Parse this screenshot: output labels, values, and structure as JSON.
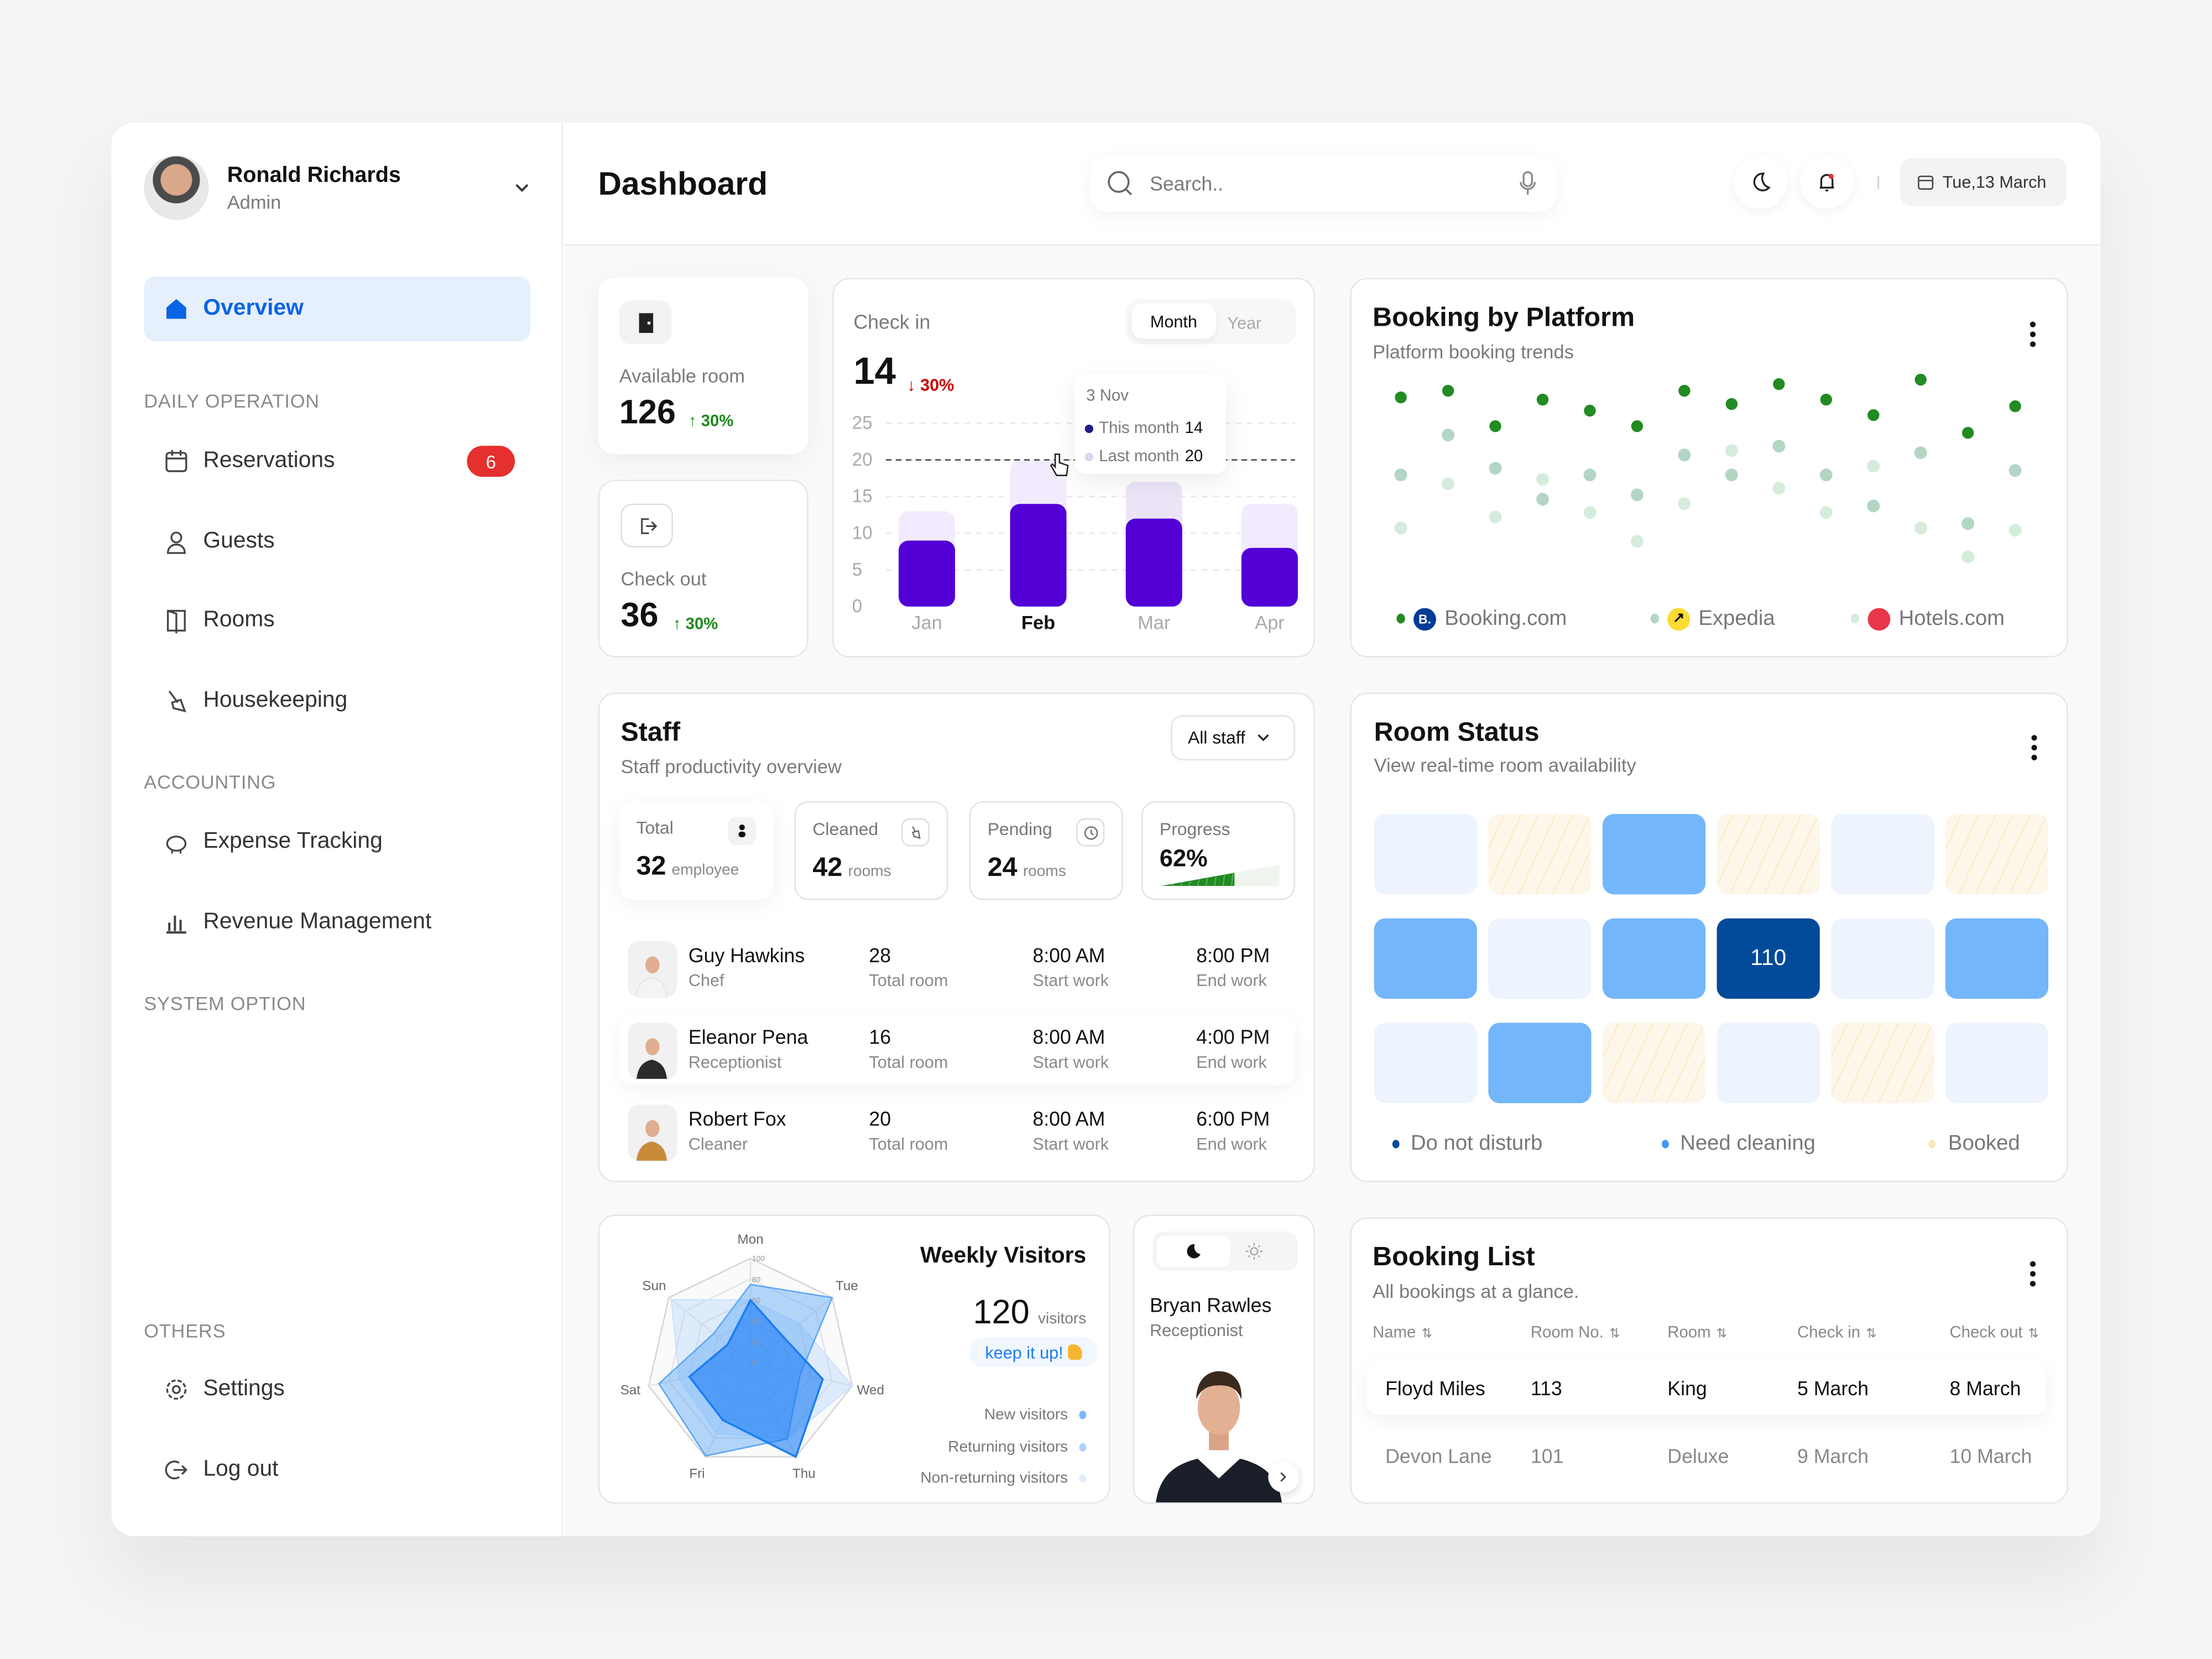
{
  "profile": {
    "name": "Ronald Richards",
    "role": "Admin"
  },
  "sidebar": {
    "overview": "Overview",
    "sections": {
      "daily": "DAILY OPERATION",
      "accounting": "ACCOUNTING",
      "system": "SYSTEM OPTION",
      "others": "OTHERS"
    },
    "items": [
      {
        "label": "Reservations",
        "icon": "calendar-icon",
        "badge": "6"
      },
      {
        "label": "Guests",
        "icon": "user-icon"
      },
      {
        "label": "Rooms",
        "icon": "door-icon"
      },
      {
        "label": "Housekeeping",
        "icon": "broom-icon"
      },
      {
        "label": "Expense Tracking",
        "icon": "piggy-bank-icon"
      },
      {
        "label": "Revenue Management",
        "icon": "bar-chart-icon"
      },
      {
        "label": "Settings",
        "icon": "gear-icon"
      },
      {
        "label": "Log out",
        "icon": "logout-icon"
      }
    ]
  },
  "header": {
    "title": "Dashboard",
    "search_placeholder": "Search..",
    "date": "Tue,13 March"
  },
  "available_room": {
    "label": "Available room",
    "value": "126",
    "change": "↑ 30%"
  },
  "check_out": {
    "label": "Check out",
    "value": "36",
    "change": "↑ 30%"
  },
  "check_in": {
    "label": "Check in",
    "value": "14",
    "change": "↓ 30%",
    "tabs": [
      "Month",
      "Year"
    ],
    "active_tab": "Month",
    "tooltip": {
      "date": "3 Nov",
      "this_label": "This month",
      "this_value": "14",
      "last_label": "Last month",
      "last_value": "20"
    }
  },
  "booking_platform": {
    "title": "Booking by Platform",
    "subtitle": "Platform booking trends"
  },
  "staff": {
    "title": "Staff",
    "subtitle": "Staff productivity overview",
    "filter": "All staff",
    "stats": [
      {
        "label": "Total",
        "value": "32",
        "unit": "employee"
      },
      {
        "label": "Cleaned",
        "value": "42",
        "unit": "rooms"
      },
      {
        "label": "Pending",
        "value": "24",
        "unit": "rooms"
      },
      {
        "label": "Progress",
        "value": "62%",
        "progress": 62
      }
    ],
    "rows": [
      {
        "name": "Guy Hawkins",
        "role": "Chef",
        "rooms": "28",
        "rooms_label": "Total room",
        "start": "8:00 AM",
        "start_label": "Start work",
        "end": "8:00 PM",
        "end_label": "End work"
      },
      {
        "name": "Eleanor Pena",
        "role": "Receptionist",
        "rooms": "16",
        "rooms_label": "Total room",
        "start": "8:00 AM",
        "start_label": "Start work",
        "end": "4:00 PM",
        "end_label": "End work"
      },
      {
        "name": "Robert Fox",
        "role": "Cleaner",
        "rooms": "20",
        "rooms_label": "Total room",
        "start": "8:00 AM",
        "start_label": "Start work",
        "end": "6:00 PM",
        "end_label": "End work"
      }
    ]
  },
  "room_status": {
    "title": "Room Status",
    "subtitle": "View real-time room availability",
    "grid": [
      [
        "free",
        "booked",
        "clean",
        "booked",
        "free",
        "booked"
      ],
      [
        "clean",
        "free",
        "clean",
        "dnd",
        "free",
        "clean"
      ],
      [
        "free",
        "clean",
        "booked",
        "free",
        "booked",
        "free"
      ]
    ],
    "highlight_room": "110",
    "legend": [
      "Do not disturb",
      "Need cleaning",
      "Booked"
    ],
    "colors": {
      "dnd": "#024a9a",
      "clean": "#74b6fb",
      "free": "#edf4fe",
      "booked": "#fdf7eb"
    }
  },
  "weekly_visitors": {
    "title": "Weekly Visitors",
    "value": "120",
    "unit": "visitors",
    "badge": "keep it up!",
    "badge_icon": "flexed-biceps-icon"
  },
  "employee_card": {
    "name": "Bryan Rawles",
    "role": "Receptionist"
  },
  "booking_list": {
    "title": "Booking List",
    "subtitle": "All bookings at a glance.",
    "columns": [
      "Name",
      "Room No.",
      "Room",
      "Check in",
      "Check out"
    ],
    "rows": [
      [
        "Floyd Miles",
        "113",
        "King",
        "5 March",
        "8 March"
      ],
      [
        "Devon Lane",
        "101",
        "Deluxe",
        "9 March",
        "10 March"
      ]
    ]
  },
  "chart_data": [
    {
      "type": "bar",
      "id": "check-in",
      "categories": [
        "Jan",
        "Feb",
        "Mar",
        "Apr"
      ],
      "highlight_category": "Feb",
      "series": [
        {
          "name": "This month",
          "values": [
            9,
            14,
            12,
            8
          ],
          "color": "#5200d6"
        },
        {
          "name": "Last month",
          "values": [
            13,
            20,
            17,
            14
          ],
          "color": "#f1ebfd"
        }
      ],
      "ylim": [
        0,
        25
      ],
      "yticks": [
        0,
        5,
        10,
        15,
        20,
        25
      ],
      "reference_line": 20,
      "grid": true
    },
    {
      "type": "scatter",
      "id": "booking-by-platform",
      "series": [
        {
          "name": "Booking.com",
          "values": [
            90,
            93,
            77,
            89,
            84,
            77,
            93,
            87,
            96,
            89,
            82,
            98,
            74,
            86
          ],
          "color": "#228b22"
        },
        {
          "name": "Expedia",
          "values": [
            55,
            73,
            58,
            44,
            55,
            46,
            64,
            55,
            68,
            55,
            41,
            65,
            33,
            57
          ],
          "color": "#b3d6c4"
        },
        {
          "name": "Hotels.com",
          "values": [
            31,
            51,
            36,
            53,
            38,
            25,
            42,
            66,
            49,
            38,
            59,
            31,
            18,
            30
          ],
          "color": "#d5ecdc"
        }
      ],
      "ylim": [
        0,
        100
      ],
      "legend": "bottom"
    },
    {
      "type": "radar",
      "id": "weekly-visitors",
      "categories": [
        "Mon",
        "Tue",
        "Wed",
        "Thu",
        "Fri",
        "Sat",
        "Sun"
      ],
      "rticks": [
        0,
        20,
        40,
        60,
        80,
        100
      ],
      "rlim": [
        0,
        100
      ],
      "series": [
        {
          "name": "New visitors",
          "values": [
            60,
            40,
            71,
            100,
            61,
            60,
            28
          ],
          "color": "#1a7cf5"
        },
        {
          "name": "Returning visitors",
          "values": [
            75,
            100,
            49,
            81,
            99,
            90,
            45
          ],
          "color": "#5aa6f8"
        },
        {
          "name": "Non-returning visitors",
          "values": [
            60,
            60,
            100,
            81,
            75,
            70,
            97
          ],
          "color": "#cfe3fc"
        }
      ],
      "legend": "right"
    }
  ]
}
